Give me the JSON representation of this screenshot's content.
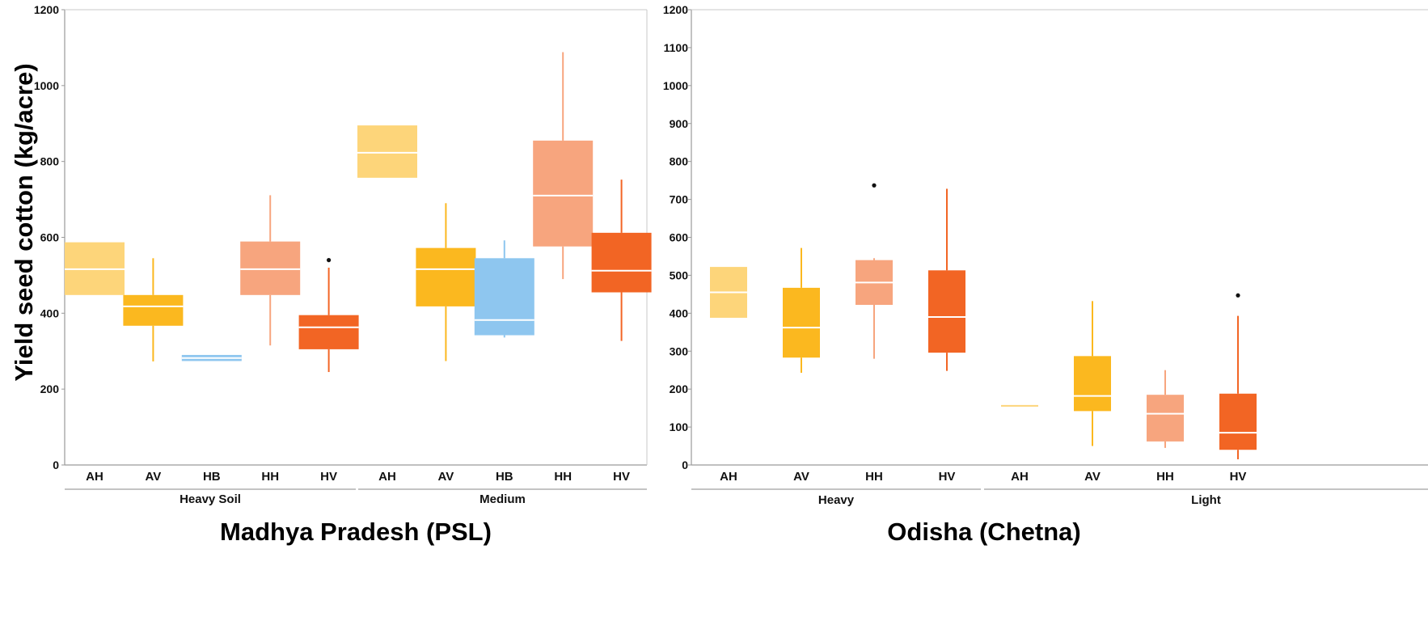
{
  "y_axis_label": "Yield seed cotton (kg/acre)",
  "colors": {
    "AH": "#fdd57a",
    "AV": "#fbb81f",
    "HB": "#8ec6ef",
    "HH": "#f7a57e",
    "HV": "#f26524",
    "axis": "#9a9a9a",
    "median": "#ffffff",
    "outlier": "#111111"
  },
  "chart_data": [
    {
      "type": "boxplot",
      "title": "Madhya Pradesh (PSL)",
      "ylim": [
        0,
        1200
      ],
      "yticks": [
        0,
        200,
        400,
        600,
        800,
        1000,
        1200
      ],
      "grid": false,
      "groups": [
        {
          "name": "Heavy Soil",
          "boxes": [
            {
              "label": "AH",
              "min": 448,
              "q1": 448,
              "median": 516,
              "q3": 587,
              "max": 587,
              "outliers": []
            },
            {
              "label": "AV",
              "min": 273,
              "q1": 367,
              "median": 418,
              "q3": 448,
              "max": 545,
              "outliers": []
            },
            {
              "label": "HB",
              "min": 274,
              "q1": 274,
              "median": 282,
              "q3": 290,
              "max": 290,
              "outliers": []
            },
            {
              "label": "HH",
              "min": 315,
              "q1": 448,
              "median": 516,
              "q3": 589,
              "max": 711,
              "outliers": []
            },
            {
              "label": "HV",
              "min": 245,
              "q1": 305,
              "median": 363,
              "q3": 395,
              "max": 520,
              "outliers": [
                540
              ]
            }
          ]
        },
        {
          "name": "Medium",
          "boxes": [
            {
              "label": "AH",
              "min": 757,
              "q1": 757,
              "median": 823,
              "q3": 895,
              "max": 895,
              "outliers": []
            },
            {
              "label": "AV",
              "min": 274,
              "q1": 418,
              "median": 516,
              "q3": 572,
              "max": 690,
              "outliers": []
            },
            {
              "label": "HB",
              "min": 336,
              "q1": 342,
              "median": 382,
              "q3": 545,
              "max": 592,
              "outliers": []
            },
            {
              "label": "HH",
              "min": 490,
              "q1": 576,
              "median": 710,
              "q3": 855,
              "max": 1088,
              "outliers": []
            },
            {
              "label": "HV",
              "min": 327,
              "q1": 455,
              "median": 512,
              "q3": 612,
              "max": 752,
              "outliers": []
            }
          ]
        }
      ]
    },
    {
      "type": "boxplot",
      "title": "Odisha (Chetna)",
      "ylim": [
        0,
        1200
      ],
      "yticks": [
        0,
        100,
        200,
        300,
        400,
        500,
        600,
        700,
        800,
        900,
        1000,
        1100,
        1200
      ],
      "grid": false,
      "groups": [
        {
          "name": "Heavy",
          "boxes": [
            {
              "label": "AH",
              "min": 388,
              "q1": 388,
              "median": 455,
              "q3": 522,
              "max": 522,
              "outliers": []
            },
            {
              "label": "AV",
              "min": 243,
              "q1": 283,
              "median": 362,
              "q3": 467,
              "max": 572,
              "outliers": []
            },
            {
              "label": "HH",
              "min": 280,
              "q1": 422,
              "median": 481,
              "q3": 540,
              "max": 545,
              "outliers": [
                737
              ]
            },
            {
              "label": "HV",
              "min": 248,
              "q1": 296,
              "median": 390,
              "q3": 513,
              "max": 728,
              "outliers": []
            }
          ]
        },
        {
          "name": "Light",
          "boxes": [
            {
              "label": "AH",
              "min": 158,
              "q1": 158,
              "median": 158,
              "q3": 158,
              "max": 158,
              "outliers": []
            },
            {
              "label": "AV",
              "min": 50,
              "q1": 142,
              "median": 182,
              "q3": 287,
              "max": 432,
              "outliers": []
            },
            {
              "label": "HH",
              "min": 45,
              "q1": 62,
              "median": 135,
              "q3": 185,
              "max": 250,
              "outliers": []
            },
            {
              "label": "HV",
              "min": 15,
              "q1": 40,
              "median": 85,
              "q3": 188,
              "max": 393,
              "outliers": [
                447
              ]
            }
          ]
        }
      ]
    }
  ]
}
